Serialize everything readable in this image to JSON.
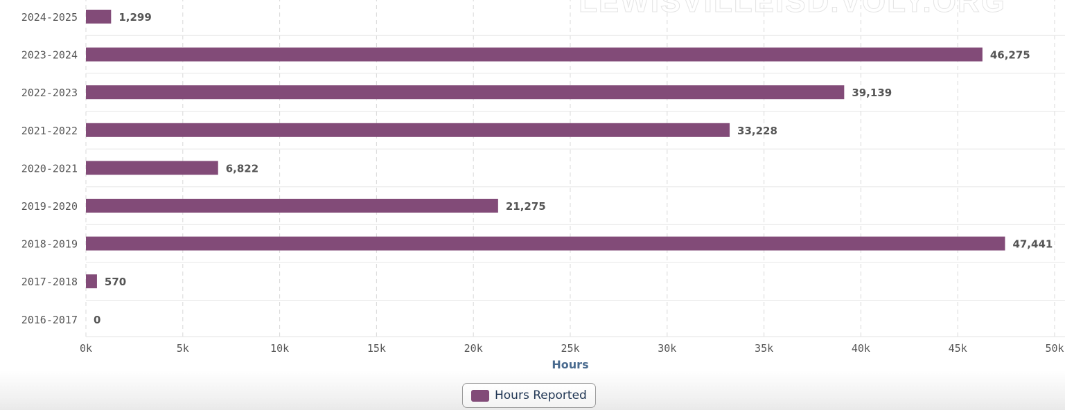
{
  "watermark": "LEWISVILLEISD.VOLY.ORG",
  "legend": {
    "label": "Hours Reported"
  },
  "colors": {
    "bar": "#824b78",
    "grid": "#d8d8d8",
    "tick_text": "#555555",
    "label_text": "#555555",
    "axis_title": "#4a6b8f"
  },
  "chart_data": {
    "type": "bar",
    "orientation": "horizontal",
    "categories": [
      "2024-2025",
      "2023-2024",
      "2022-2023",
      "2021-2022",
      "2020-2021",
      "2019-2020",
      "2018-2019",
      "2017-2018",
      "2016-2017"
    ],
    "series": [
      {
        "name": "Hours Reported",
        "values": [
          1299,
          46275,
          39139,
          33228,
          6822,
          21275,
          47441,
          570,
          0
        ]
      }
    ],
    "data_labels": [
      "1,299",
      "46,275",
      "39,139",
      "33,228",
      "6,822",
      "21,275",
      "47,441",
      "570",
      "0"
    ],
    "xlabel": "Hours",
    "xlim": [
      0,
      50000
    ],
    "x_ticks": [
      0,
      5000,
      10000,
      15000,
      20000,
      25000,
      30000,
      35000,
      40000,
      45000,
      50000
    ],
    "x_tick_labels": [
      "0k",
      "5k",
      "10k",
      "15k",
      "20k",
      "25k",
      "30k",
      "35k",
      "40k",
      "45k",
      "50k"
    ],
    "grid": true,
    "legend_position": "bottom-center"
  }
}
